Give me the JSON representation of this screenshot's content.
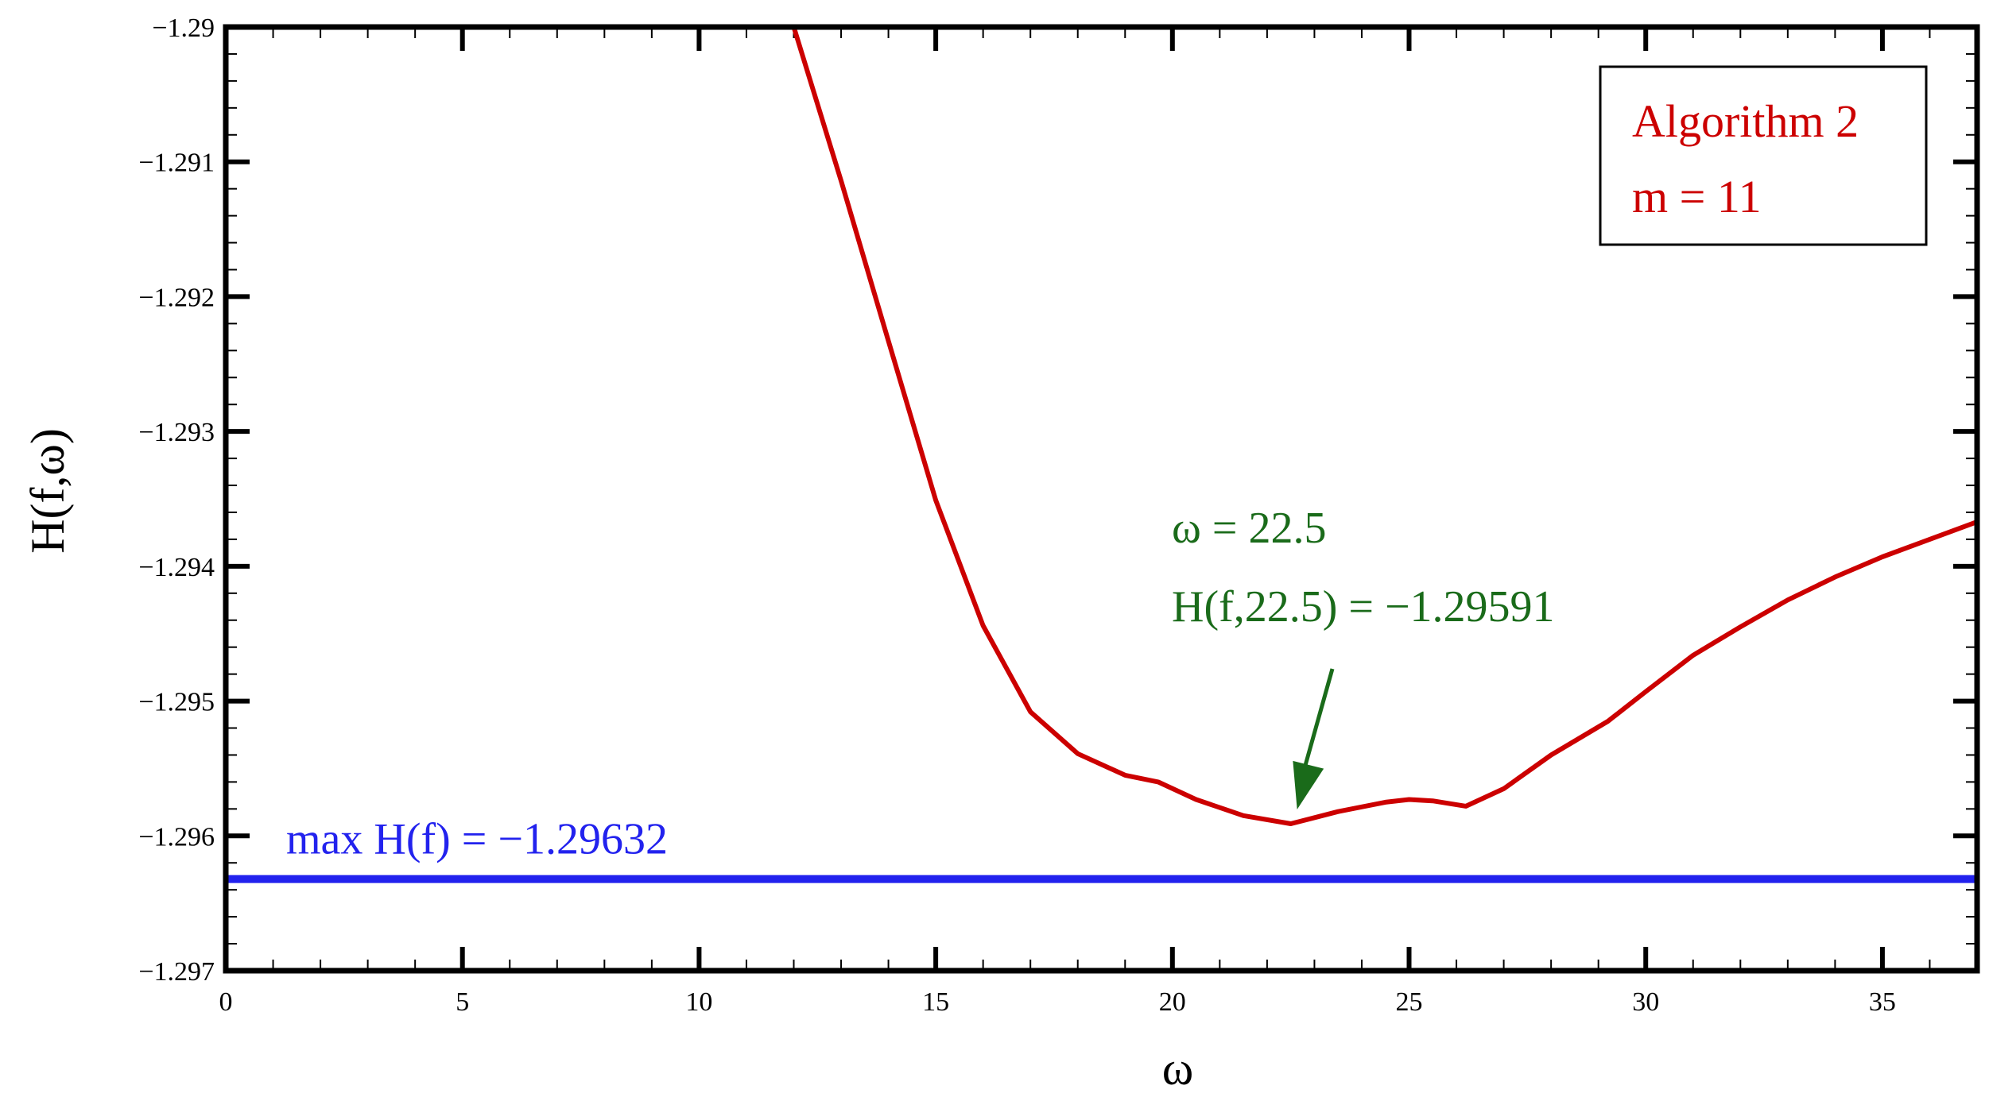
{
  "chart_data": {
    "type": "line",
    "xlabel": "ω",
    "ylabel": "H(f,ω)",
    "xlim": [
      0,
      37
    ],
    "ylim": [
      -1.297,
      -1.29
    ],
    "x_major_ticks": [
      0,
      5,
      10,
      15,
      20,
      25,
      30,
      35
    ],
    "x_tick_labels": [
      "0",
      "5",
      "10",
      "15",
      "20",
      "25",
      "30",
      "35"
    ],
    "x_minor_step": 1,
    "y_major_ticks": [
      -1.297,
      -1.296,
      -1.295,
      -1.294,
      -1.293,
      -1.292,
      -1.291,
      -1.29
    ],
    "y_tick_labels": [
      "−1.297",
      "−1.296",
      "−1.295",
      "−1.294",
      "−1.293",
      "−1.292",
      "−1.291",
      "−1.29"
    ],
    "y_minor_step": 0.0002,
    "grid": false,
    "series": [
      {
        "color": "#cc0000",
        "x": [
          12.0,
          13.0,
          14.0,
          15.0,
          16.0,
          17.0,
          18.0,
          19.0,
          19.7,
          20.5,
          21.5,
          22.5,
          23.5,
          24.5,
          25.0,
          25.5,
          26.2,
          27.0,
          28.0,
          29.2,
          30.0,
          31.0,
          32.0,
          33.0,
          34.0,
          35.0,
          36.0,
          37.0
        ],
        "y": [
          -1.29,
          -1.29114,
          -1.29233,
          -1.29351,
          -1.29444,
          -1.29508,
          -1.29539,
          -1.29555,
          -1.2956,
          -1.29573,
          -1.29585,
          -1.29591,
          -1.29582,
          -1.29575,
          -1.29573,
          -1.29574,
          -1.29578,
          -1.29565,
          -1.2954,
          -1.29515,
          -1.29493,
          -1.29466,
          -1.29445,
          -1.29425,
          -1.29408,
          -1.29393,
          -1.2938,
          -1.29367
        ]
      }
    ],
    "reference_line": {
      "label": "max H(f) = −1.29632",
      "y": -1.29632,
      "color": "#2222ee"
    },
    "legend": {
      "position": "top-right",
      "lines": [
        "Algorithm 2",
        "m = 11"
      ],
      "color": "#cc0000"
    },
    "annotation": {
      "lines": [
        "ω = 22.5",
        "H(f,22.5) = −1.29591"
      ],
      "point": [
        22.5,
        -1.29591
      ],
      "color": "#1a6b1a"
    }
  }
}
